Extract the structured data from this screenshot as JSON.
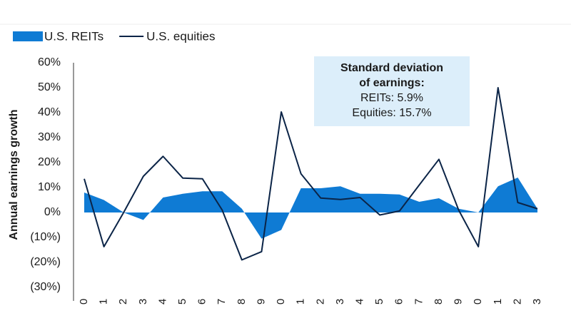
{
  "chart_data": {
    "type": "area_line",
    "y_axis_label": "Annual earnings growth",
    "annotation": [
      "Standard deviation",
      "of earnings:",
      "REITs: 5.9%",
      "Equities: 15.7%"
    ],
    "categories": [
      "0",
      "1",
      "2",
      "3",
      "4",
      "5",
      "6",
      "7",
      "8",
      "9",
      "0",
      "1",
      "2",
      "3",
      "4",
      "5",
      "6",
      "7",
      "8",
      "9",
      "0",
      "1",
      "2",
      "3"
    ],
    "series": [
      {
        "name": "U.S. REITs",
        "color": "#0f7bd4",
        "kind": "area",
        "values": [
          8,
          5,
          0,
          -3,
          6,
          7.5,
          8.5,
          8.5,
          1.5,
          -10.5,
          -7,
          9.7,
          9.7,
          10.5,
          7.5,
          7.5,
          7.2,
          4.3,
          5.7,
          1.5,
          0,
          10.5,
          14,
          1.5
        ]
      },
      {
        "name": "U.S. equities",
        "color": "#0b2447",
        "kind": "line",
        "values": [
          13.5,
          -13.7,
          0,
          14.5,
          22.5,
          13.8,
          13.5,
          1,
          -19,
          -15.7,
          40.3,
          15.5,
          5.8,
          5.2,
          6,
          -1,
          0.6,
          11,
          21.3,
          1,
          -13.7,
          50,
          4,
          1.5
        ]
      }
    ],
    "ylim": [
      -30,
      60
    ],
    "yticks": [
      {
        "value": -30,
        "label": "(30%)"
      },
      {
        "value": -20,
        "label": "(20%)"
      },
      {
        "value": -10,
        "label": "(10%)"
      },
      {
        "value": 0,
        "label": "0%"
      },
      {
        "value": 10,
        "label": "10%"
      },
      {
        "value": 20,
        "label": "20%"
      },
      {
        "value": 30,
        "label": "30%"
      },
      {
        "value": 40,
        "label": "40%"
      },
      {
        "value": 50,
        "label": "50%"
      },
      {
        "value": 60,
        "label": "60%"
      }
    ],
    "grid": false
  }
}
